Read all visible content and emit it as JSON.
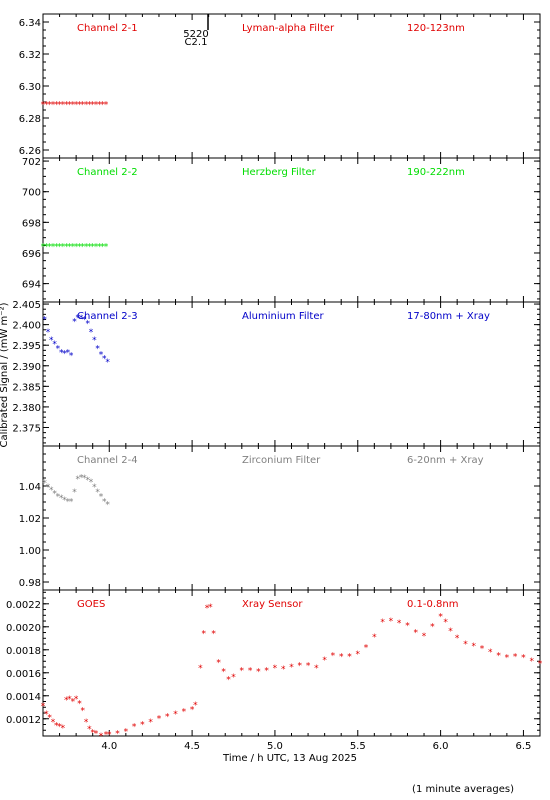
{
  "y_axis_label": "Calibrated Signal / (mW m⁻²)",
  "x_axis_label": "Time / h UTC, 13 Aug 2025",
  "footnote": "(1 minute averages)",
  "marker_label_top": "5220",
  "marker_label_bottom": "C2.1",
  "marker_color": "#000000",
  "chart_data": [
    {
      "type": "scatter",
      "panel": "Channel 2-1",
      "channel_label": "Channel 2-1",
      "filter_label": "Lyman-alpha Filter",
      "band_label": "120-123nm",
      "color": "#e00000",
      "ylim": [
        6.255,
        6.345
      ],
      "yticks": [
        6.26,
        6.28,
        6.3,
        6.32,
        6.34
      ],
      "ytick_labels": [
        "6.26",
        "6.28",
        "6.30",
        "6.32",
        "6.34"
      ],
      "xlim": [
        3.6,
        6.6
      ],
      "series": [
        {
          "x": [
            3.6,
            3.62,
            3.64,
            3.66,
            3.68,
            3.7,
            3.72,
            3.74,
            3.76,
            3.78,
            3.8,
            3.82,
            3.84,
            3.86,
            3.88,
            3.9,
            3.92,
            3.94,
            3.96,
            3.98
          ],
          "y": [
            6.289,
            6.289,
            6.289,
            6.289,
            6.289,
            6.289,
            6.289,
            6.289,
            6.289,
            6.289,
            6.289,
            6.289,
            6.289,
            6.289,
            6.289,
            6.289,
            6.289,
            6.289,
            6.289,
            6.289
          ]
        }
      ]
    },
    {
      "type": "scatter",
      "panel": "Channel 2-2",
      "channel_label": "Channel 2-2",
      "filter_label": "Herzberg Filter",
      "band_label": "190-222nm",
      "color": "#00dd00",
      "ylim": [
        692.8,
        702.2
      ],
      "yticks": [
        694,
        696,
        698,
        700,
        702
      ],
      "ytick_labels": [
        "694",
        "696",
        "698",
        "700",
        "702"
      ],
      "xlim": [
        3.6,
        6.6
      ],
      "series": [
        {
          "x": [
            3.6,
            3.62,
            3.64,
            3.66,
            3.68,
            3.7,
            3.72,
            3.74,
            3.76,
            3.78,
            3.8,
            3.82,
            3.84,
            3.86,
            3.88,
            3.9,
            3.92,
            3.94,
            3.96,
            3.98
          ],
          "y": [
            696.5,
            696.5,
            696.5,
            696.5,
            696.5,
            696.5,
            696.5,
            696.5,
            696.5,
            696.5,
            696.5,
            696.5,
            696.5,
            696.5,
            696.5,
            696.5,
            696.5,
            696.5,
            696.5,
            696.5
          ]
        }
      ]
    },
    {
      "type": "scatter",
      "panel": "Channel 2-3",
      "channel_label": "Channel 2-3",
      "filter_label": "Aluminium Filter",
      "band_label": "17-80nm + Xray",
      "color": "#0000c8",
      "ylim": [
        2.3705,
        2.4055
      ],
      "yticks": [
        2.375,
        2.38,
        2.385,
        2.39,
        2.395,
        2.4,
        2.405
      ],
      "ytick_labels": [
        "2.375",
        "2.380",
        "2.385",
        "2.390",
        "2.395",
        "2.400",
        "2.405"
      ],
      "xlim": [
        3.6,
        6.6
      ],
      "series": [
        {
          "x": [
            3.61,
            3.63,
            3.65,
            3.67,
            3.69,
            3.71,
            3.73,
            3.75,
            3.77,
            3.79,
            3.81,
            3.83,
            3.85,
            3.87,
            3.89,
            3.91,
            3.93,
            3.95,
            3.97,
            3.99
          ],
          "y": [
            2.4015,
            2.3985,
            2.3965,
            2.3955,
            2.3945,
            2.3935,
            2.3932,
            2.3935,
            2.3928,
            2.401,
            2.402,
            2.4018,
            2.4015,
            2.4005,
            2.3985,
            2.3965,
            2.3945,
            2.393,
            2.392,
            2.3912
          ]
        }
      ]
    },
    {
      "type": "scatter",
      "panel": "Channel 2-4",
      "channel_label": "Channel 2-4",
      "filter_label": "Zirconium Filter",
      "band_label": "6-20nm + Xray",
      "color": "#808080",
      "ylim": [
        0.975,
        1.065
      ],
      "yticks": [
        0.98,
        1.0,
        1.02,
        1.04
      ],
      "ytick_labels": [
        "0.98",
        "1.00",
        "1.02",
        "1.04"
      ],
      "xlim": [
        3.6,
        6.6
      ],
      "series": [
        {
          "x": [
            3.61,
            3.63,
            3.65,
            3.67,
            3.69,
            3.71,
            3.73,
            3.75,
            3.77,
            3.79,
            3.81,
            3.83,
            3.85,
            3.87,
            3.89,
            3.91,
            3.93,
            3.95,
            3.97,
            3.99
          ],
          "y": [
            1.0425,
            1.04,
            1.038,
            1.036,
            1.034,
            1.033,
            1.032,
            1.031,
            1.031,
            1.037,
            1.045,
            1.046,
            1.0455,
            1.0445,
            1.043,
            1.04,
            1.037,
            1.034,
            1.031,
            1.029
          ]
        }
      ]
    },
    {
      "type": "scatter",
      "panel": "GOES",
      "channel_label": "GOES",
      "filter_label": "Xray Sensor",
      "band_label": "0.1-0.8nm",
      "color": "#e00000",
      "ylim": [
        0.00105,
        0.00232
      ],
      "yticks": [
        0.0012,
        0.0014,
        0.0016,
        0.0018,
        0.002,
        0.0022
      ],
      "ytick_labels": [
        "0.0012",
        "0.0014",
        "0.0016",
        "0.0018",
        "0.0020",
        "0.0022"
      ],
      "xlim": [
        3.6,
        6.6
      ],
      "xticks": [
        4.0,
        4.5,
        5.0,
        5.5,
        6.0,
        6.5
      ],
      "xtick_labels": [
        "4.0",
        "4.5",
        "5.0",
        "5.5",
        "6.0",
        "6.5"
      ],
      "series": [
        {
          "x": [
            3.6,
            3.62,
            3.64,
            3.66,
            3.68,
            3.7,
            3.72,
            3.74,
            3.76,
            3.78,
            3.8,
            3.82,
            3.84,
            3.86,
            3.88,
            3.9,
            3.92,
            3.95,
            3.98,
            4.0,
            4.05,
            4.1,
            4.15,
            4.2,
            4.25,
            4.3,
            4.35,
            4.4,
            4.45,
            4.5,
            4.52,
            4.55,
            4.57,
            4.59,
            4.61,
            4.63,
            4.66,
            4.69,
            4.72,
            4.75,
            4.8,
            4.85,
            4.9,
            4.95,
            5.0,
            5.05,
            5.1,
            5.15,
            5.2,
            5.25,
            5.3,
            5.35,
            5.4,
            5.45,
            5.5,
            5.55,
            5.6,
            5.65,
            5.7,
            5.75,
            5.8,
            5.85,
            5.9,
            5.95,
            6.0,
            6.03,
            6.06,
            6.1,
            6.15,
            6.2,
            6.25,
            6.3,
            6.35,
            6.4,
            6.45,
            6.5,
            6.55,
            6.6
          ],
          "y": [
            0.00132,
            0.00125,
            0.00122,
            0.00118,
            0.00115,
            0.00114,
            0.00113,
            0.00137,
            0.00138,
            0.00136,
            0.00138,
            0.00134,
            0.00128,
            0.00118,
            0.00112,
            0.00109,
            0.00108,
            0.00106,
            0.00107,
            0.00107,
            0.00108,
            0.0011,
            0.00114,
            0.00116,
            0.00118,
            0.00121,
            0.00123,
            0.00125,
            0.00127,
            0.00129,
            0.00133,
            0.00165,
            0.00195,
            0.00217,
            0.00218,
            0.00195,
            0.0017,
            0.00162,
            0.00155,
            0.00157,
            0.00163,
            0.00163,
            0.00162,
            0.00163,
            0.00165,
            0.00164,
            0.00166,
            0.00167,
            0.00167,
            0.00165,
            0.00172,
            0.00176,
            0.00175,
            0.00175,
            0.00177,
            0.00183,
            0.00192,
            0.00205,
            0.00206,
            0.00204,
            0.00202,
            0.00196,
            0.00193,
            0.00201,
            0.0021,
            0.00205,
            0.00197,
            0.00191,
            0.00186,
            0.00184,
            0.00182,
            0.00179,
            0.00176,
            0.00174,
            0.00175,
            0.00174,
            0.00171,
            0.00169
          ]
        }
      ]
    }
  ]
}
